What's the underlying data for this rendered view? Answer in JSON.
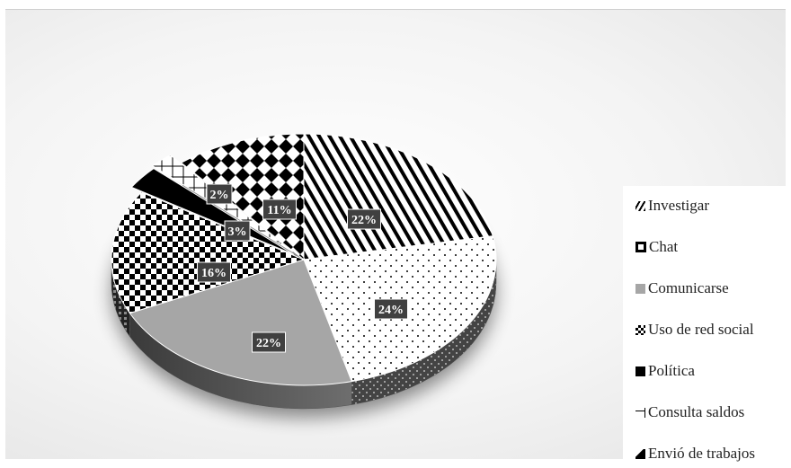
{
  "chart_data": {
    "type": "pie",
    "title": "",
    "categories": [
      "Investigar",
      "Chat",
      "Comunicarse",
      "Uso de red social",
      "Política",
      "Consulta saldos",
      "Envió de trabajos"
    ],
    "values": [
      22,
      24,
      22,
      16,
      3,
      2,
      11
    ],
    "data_labels": [
      "22%",
      "24%",
      "22%",
      "16%",
      "3%",
      "2%",
      "11%"
    ],
    "legend": {
      "placement": "right",
      "entries": [
        "Investigar",
        "Chat",
        "Comunicarse",
        "Uso de red social",
        "Política",
        "Consulta saldos",
        "Envió de trabajos"
      ]
    },
    "style": "3d-exploded-pie, black-and-white patterns"
  }
}
